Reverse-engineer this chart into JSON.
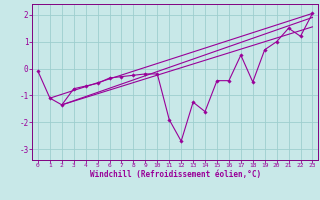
{
  "xlabel": "Windchill (Refroidissement éolien,°C)",
  "bg_color": "#c8e8e8",
  "grid_color": "#9ecece",
  "line_color": "#990099",
  "spine_color": "#800080",
  "xlim": [
    -0.5,
    23.5
  ],
  "ylim": [
    -3.4,
    2.4
  ],
  "xticks": [
    0,
    1,
    2,
    3,
    4,
    5,
    6,
    7,
    8,
    9,
    10,
    11,
    12,
    13,
    14,
    15,
    16,
    17,
    18,
    19,
    20,
    21,
    22,
    23
  ],
  "yticks": [
    -3,
    -2,
    -1,
    0,
    1,
    2
  ],
  "main_x": [
    0,
    1,
    2,
    3,
    4,
    5,
    6,
    7,
    8,
    9,
    10,
    11,
    12,
    13,
    14,
    15,
    16,
    17,
    18,
    19,
    20,
    21,
    22,
    23
  ],
  "main_y": [
    -0.1,
    -1.1,
    -1.35,
    -0.75,
    -0.65,
    -0.55,
    -0.35,
    -0.3,
    -0.25,
    -0.2,
    -0.2,
    -1.9,
    -2.7,
    -1.25,
    -1.6,
    -0.45,
    -0.45,
    0.5,
    -0.5,
    0.7,
    1.0,
    1.5,
    1.2,
    2.05
  ],
  "trend1_x": [
    1,
    23
  ],
  "trend1_y": [
    -1.1,
    2.05
  ],
  "trend2_x": [
    2,
    23
  ],
  "trend2_y": [
    -1.35,
    1.55
  ],
  "trend3_x": [
    2,
    23
  ],
  "trend3_y": [
    -1.35,
    1.9
  ]
}
